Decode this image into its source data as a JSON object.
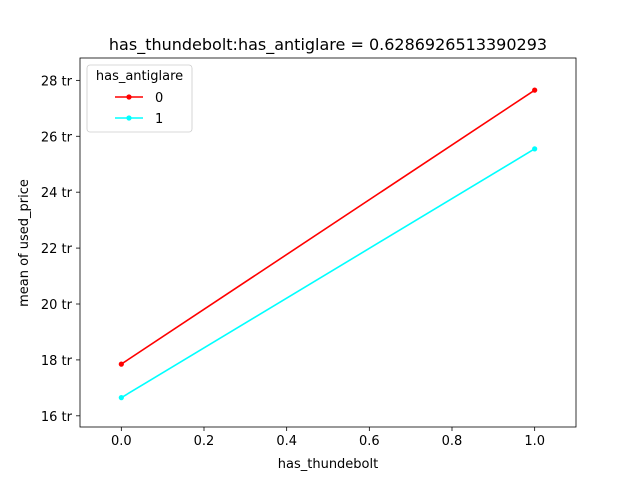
{
  "chart_data": {
    "type": "line",
    "title": "has_thundebolt:has_antiglare = 0.6286926513390293",
    "xlabel": "has_thundebolt",
    "ylabel": "mean of used_price",
    "x": [
      0.0,
      1.0
    ],
    "xlim": [
      -0.1,
      1.1
    ],
    "ylim": [
      15.6,
      28.8
    ],
    "xticks": [
      0.0,
      0.2,
      0.4,
      0.6,
      0.8,
      1.0
    ],
    "xtick_labels": [
      "0.0",
      "0.2",
      "0.4",
      "0.6",
      "0.8",
      "1.0"
    ],
    "yticks": [
      16,
      18,
      20,
      22,
      24,
      26,
      28
    ],
    "ytick_labels": [
      "16 tr",
      "18 tr",
      "20 tr",
      "22 tr",
      "24 tr",
      "26 tr",
      "28 tr"
    ],
    "grid": false,
    "legend": {
      "title": "has_antiglare",
      "placement": "upper-left"
    },
    "series": [
      {
        "name": "0",
        "color": "#ff0000",
        "values": [
          17.85,
          27.65
        ]
      },
      {
        "name": "1",
        "color": "#00ffff",
        "values": [
          16.65,
          25.55
        ]
      }
    ]
  }
}
